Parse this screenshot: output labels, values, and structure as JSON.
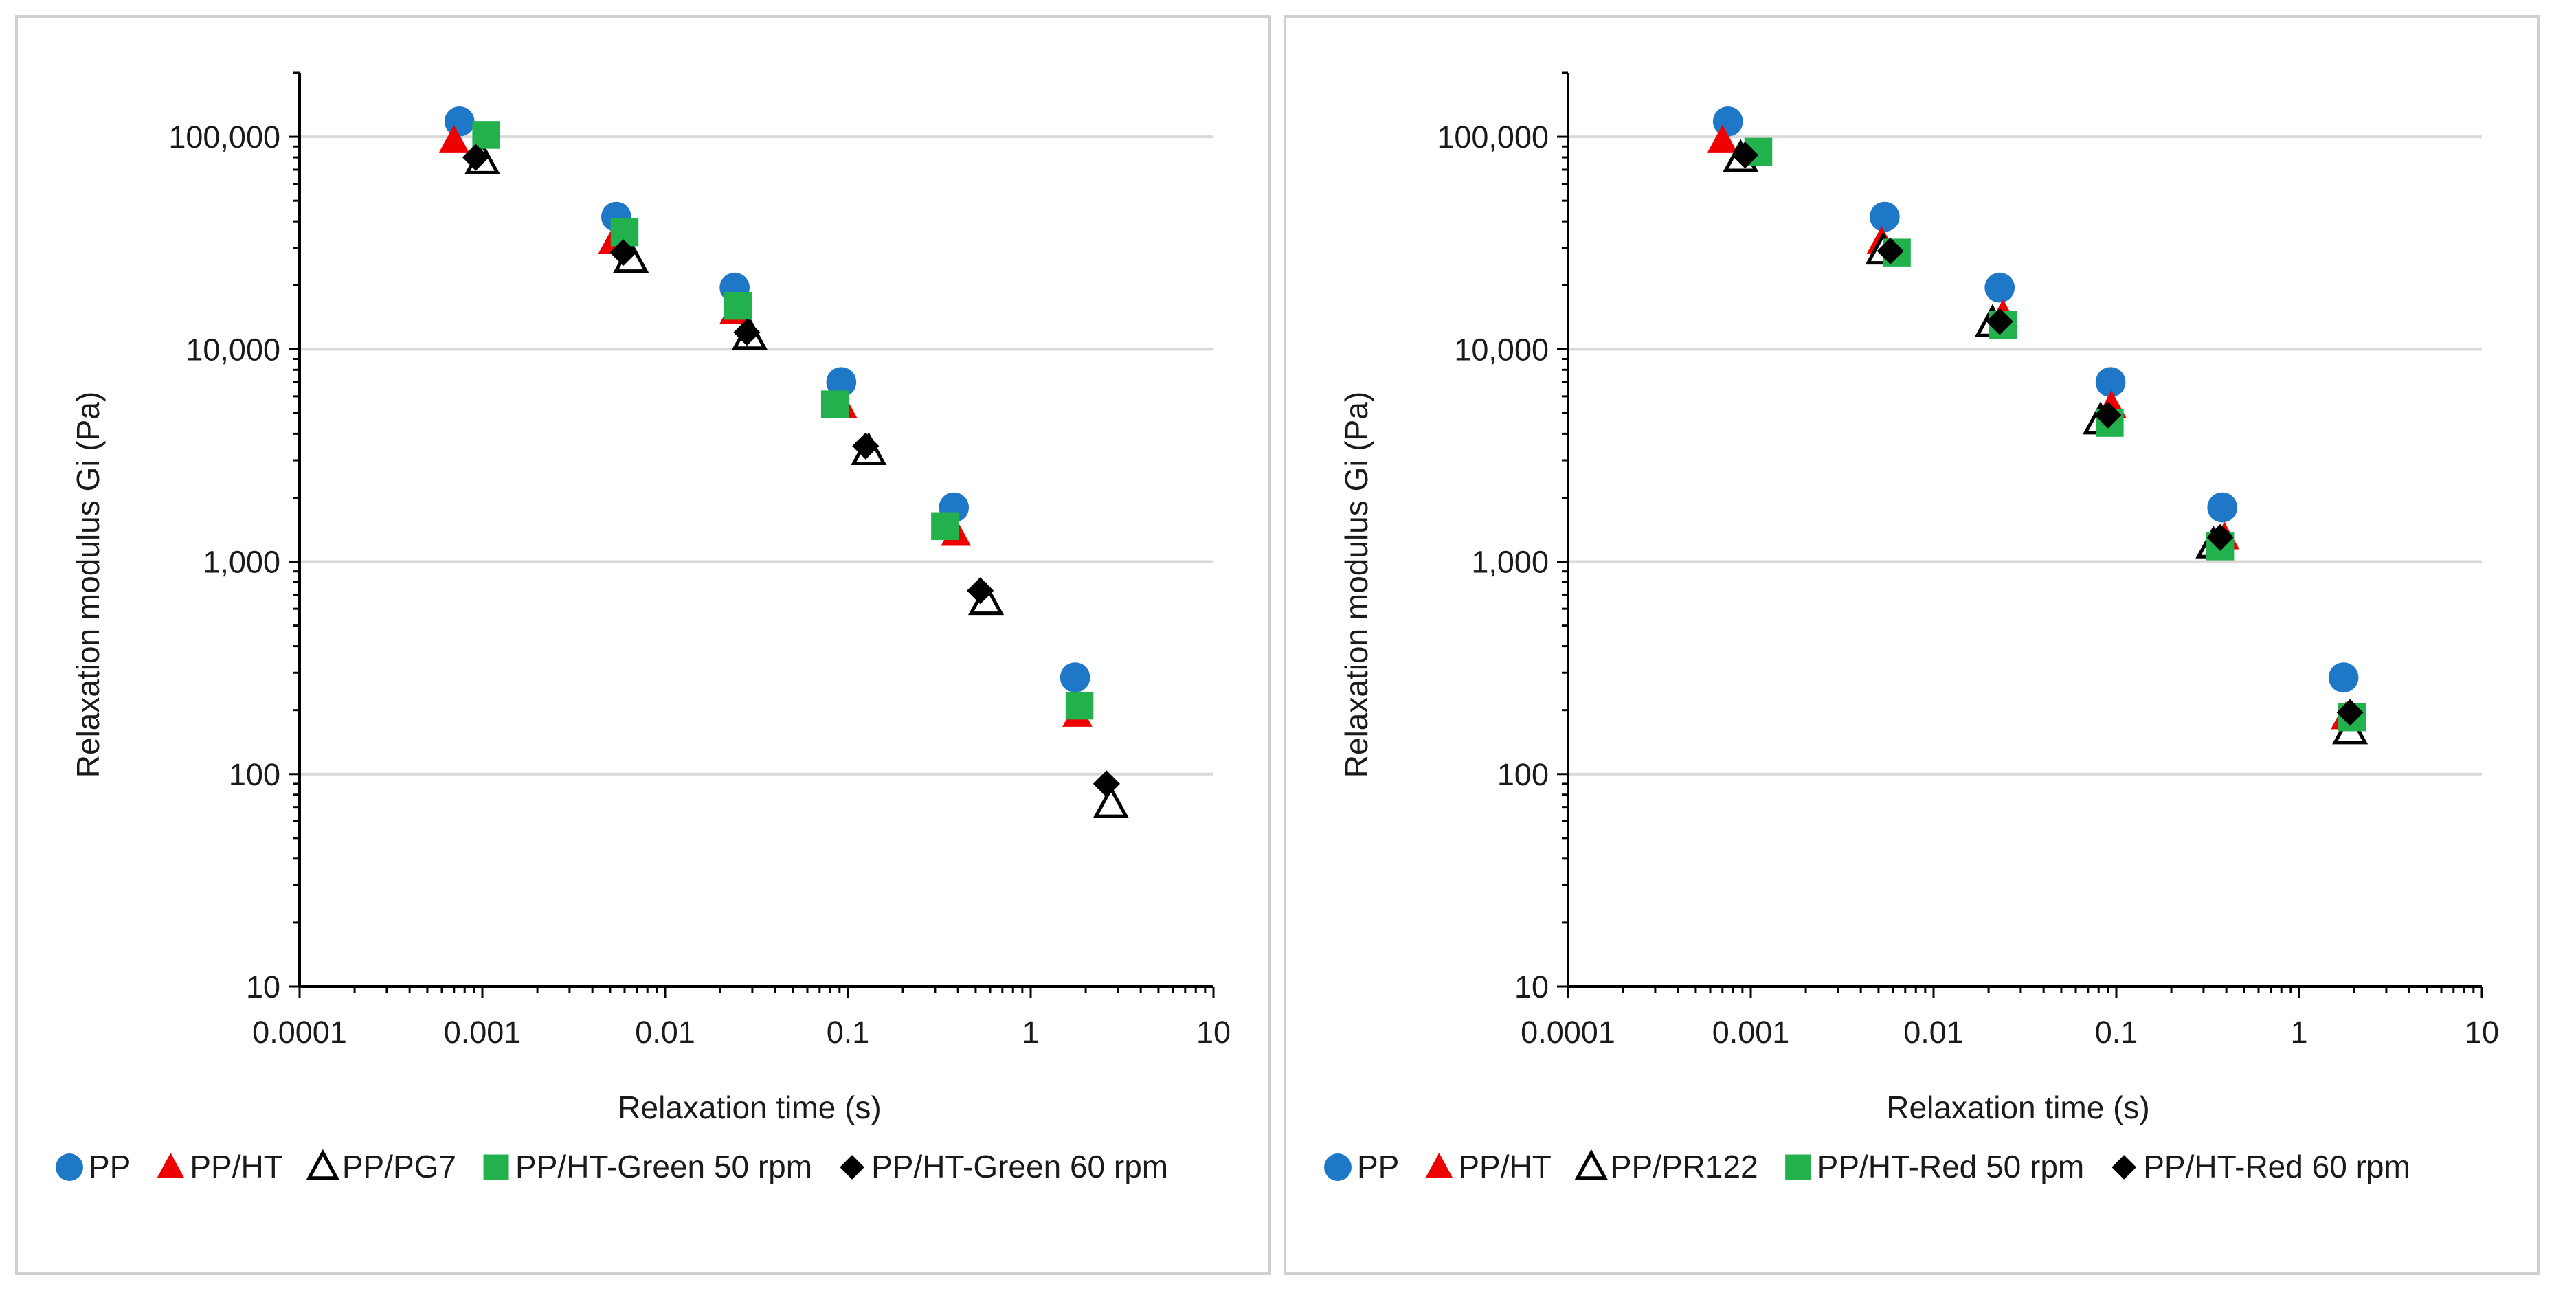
{
  "chart_data": [
    {
      "type": "scatter",
      "xscale": "log",
      "yscale": "log",
      "xlabel": "Relaxation time (s)",
      "ylabel": "Relaxation modulus Gi (Pa)",
      "xlim": [
        0.0001,
        10
      ],
      "ylim": [
        10,
        200000
      ],
      "x_tick_labels": [
        "0.0001",
        "0.001",
        "0.01",
        "0.1",
        "1",
        "10"
      ],
      "y_tick_labels": [
        "10",
        "100",
        "1,000",
        "10,000",
        "100,000"
      ],
      "grid": "horizontal",
      "legend_position": "bottom",
      "series": [
        {
          "name": "PP",
          "marker": "circle",
          "color": "#1f77c8",
          "x": [
            0.00075,
            0.0054,
            0.024,
            0.092,
            0.38,
            1.75
          ],
          "y": [
            118000,
            42000,
            19500,
            7000,
            1800,
            285
          ]
        },
        {
          "name": "PP/HT",
          "marker": "triangle",
          "color": "#ee0000",
          "x": [
            0.0007,
            0.0052,
            0.024,
            0.093,
            0.39,
            1.8
          ],
          "y": [
            96000,
            32000,
            15000,
            5400,
            1350,
            190
          ]
        },
        {
          "name": "PP/PG7",
          "marker": "triangle-open",
          "color": "#000000",
          "x": [
            0.001,
            0.0065,
            0.029,
            0.13,
            0.57,
            2.75
          ],
          "y": [
            77000,
            26500,
            11500,
            3300,
            650,
            72
          ]
        },
        {
          "name": "PP/HT-Green 50 rpm",
          "marker": "square",
          "color": "#22b14c",
          "x": [
            0.00105,
            0.006,
            0.025,
            0.085,
            0.34,
            1.85
          ],
          "y": [
            102000,
            35500,
            16000,
            5500,
            1470,
            210
          ]
        },
        {
          "name": "PP/HT-Green 60 rpm",
          "marker": "diamond",
          "color": "#000000",
          "x": [
            0.00092,
            0.0059,
            0.028,
            0.125,
            0.53,
            2.6
          ],
          "y": [
            80000,
            28500,
            12000,
            3500,
            730,
            90
          ]
        }
      ]
    },
    {
      "type": "scatter",
      "xscale": "log",
      "yscale": "log",
      "xlabel": "Relaxation time (s)",
      "ylabel": "Relaxation modulus Gi (Pa)",
      "xlim": [
        0.0001,
        10
      ],
      "ylim": [
        10,
        200000
      ],
      "x_tick_labels": [
        "0.0001",
        "0.001",
        "0.01",
        "0.1",
        "1",
        "10"
      ],
      "y_tick_labels": [
        "10",
        "100",
        "1,000",
        "10,000",
        "100,000"
      ],
      "grid": "horizontal",
      "legend_position": "bottom",
      "series": [
        {
          "name": "PP",
          "marker": "circle",
          "color": "#1f77c8",
          "x": [
            0.00075,
            0.0054,
            0.023,
            0.093,
            0.38,
            1.75
          ],
          "y": [
            118000,
            42000,
            19500,
            7000,
            1800,
            285
          ]
        },
        {
          "name": "PP/HT",
          "marker": "triangle",
          "color": "#ee0000",
          "x": [
            0.0007,
            0.0052,
            0.024,
            0.094,
            0.39,
            1.8
          ],
          "y": [
            96000,
            32000,
            14500,
            5400,
            1300,
            185
          ]
        },
        {
          "name": "PP/PR122",
          "marker": "triangle-open",
          "color": "#000000",
          "x": [
            0.00088,
            0.0053,
            0.021,
            0.082,
            0.34,
            1.9
          ],
          "y": [
            79000,
            29000,
            13200,
            4600,
            1200,
            160
          ]
        },
        {
          "name": "PP/HT-Red 50 rpm",
          "marker": "square",
          "color": "#22b14c",
          "x": [
            0.0011,
            0.0063,
            0.024,
            0.092,
            0.37,
            1.95
          ],
          "y": [
            85000,
            28500,
            13000,
            4500,
            1180,
            185
          ]
        },
        {
          "name": "PP/HT-Red 60 rpm",
          "marker": "diamond",
          "color": "#000000",
          "x": [
            0.00093,
            0.0058,
            0.023,
            0.09,
            0.37,
            1.9
          ],
          "y": [
            82000,
            29000,
            13500,
            4900,
            1300,
            195
          ]
        }
      ]
    }
  ]
}
